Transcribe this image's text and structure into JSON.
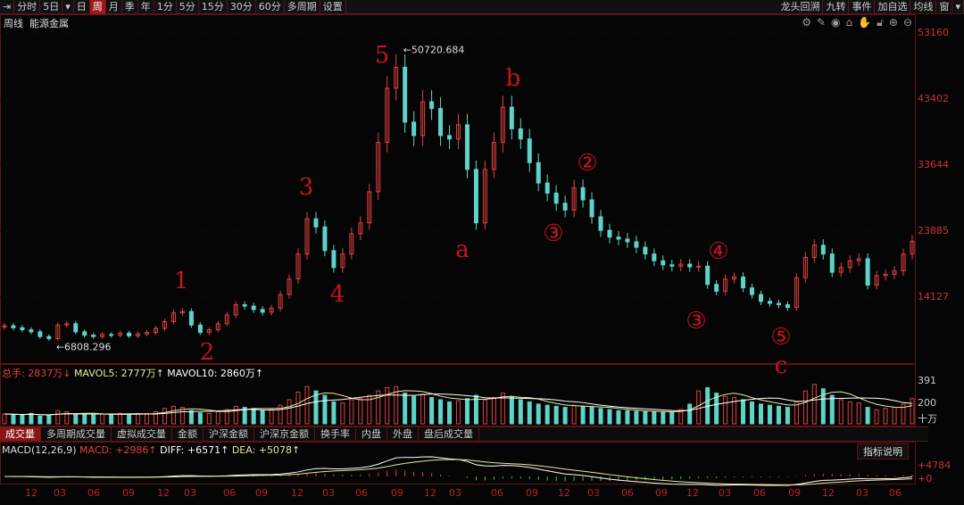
{
  "toolbar": {
    "items": [
      "分时",
      "5日",
      "▾",
      "日",
      "周",
      "月",
      "季",
      "年",
      "1分",
      "5分",
      "15分",
      "30分",
      "60分",
      "多周期",
      "设置"
    ],
    "active": "周",
    "right_items": [
      "龙头回溯",
      "九转",
      "事件",
      "加自选",
      "均线",
      "窗",
      "▾"
    ]
  },
  "title": {
    "period": "周线",
    "name": "能源金属"
  },
  "icons": [
    "gear-icon",
    "pen-icon",
    "eye-icon",
    "basket-icon",
    "hand-icon",
    "lock-icon",
    "zoom-in-icon",
    "zoom-out-icon"
  ],
  "colors": {
    "up": "#e0413f",
    "down": "#5fd3c8",
    "accent": "#a01818",
    "mavol5": "#e8e8a0",
    "mavol10": "#ffffff"
  },
  "volume_header": {
    "total_label": "总手:",
    "total": "2837万↓",
    "mavol5": "MAVOL5: 2777万↑",
    "mavol10": "MAVOL10: 2860万↑"
  },
  "volume_axis": [
    "391",
    "200",
    "十万"
  ],
  "tabs": [
    "成交量",
    "多周期成交量",
    "虚拟成交量",
    "金额",
    "沪深金额",
    "沪深京金额",
    "换手率",
    "内盘",
    "外盘",
    "盘后成交量"
  ],
  "macd_header": {
    "name": "MACD(12,26,9)",
    "macd": "MACD: +2986↑",
    "diff": "DIFF: +6571↑",
    "dea": "DEA: +5078↑"
  },
  "help_button": "指标说明",
  "macd_axis": [
    "+4784",
    "+0"
  ],
  "annotations": [
    "1",
    "2",
    "3",
    "4",
    "5",
    "a",
    "b",
    "②",
    "③",
    "④",
    "③",
    "⑤",
    "c"
  ],
  "chart_data": {
    "type": "candlestick",
    "price_axis_ticks": [
      53160,
      43402,
      33644,
      23885,
      14127
    ],
    "ylim": [
      6000,
      55000
    ],
    "high_label": "50720.684",
    "low_label": "6808.296",
    "time_ticks": [
      "12",
      "03",
      "06",
      "09",
      "12",
      "03",
      "06",
      "09",
      "12",
      "03",
      "06",
      "09",
      "12",
      "03",
      "06",
      "09",
      "12",
      "03",
      "06",
      "09",
      "12",
      "03",
      "06",
      "09",
      "12",
      "03",
      "06"
    ],
    "closes": [
      9900,
      9600,
      9300,
      9000,
      8300,
      8000,
      10000,
      10200,
      9000,
      8500,
      8300,
      8600,
      8500,
      8800,
      8400,
      8700,
      8900,
      9500,
      10500,
      11800,
      12000,
      10000,
      8900,
      9300,
      10200,
      11500,
      13000,
      12800,
      12300,
      11900,
      12500,
      14500,
      16800,
      20500,
      25700,
      24500,
      21000,
      18500,
      20500,
      23500,
      25100,
      29700,
      37000,
      45000,
      48100,
      40000,
      38000,
      43000,
      42000,
      38000,
      37500,
      39600,
      33000,
      25100,
      33000,
      37000,
      42200,
      39000,
      37500,
      34000,
      31000,
      29500,
      28000,
      27000,
      30300,
      28500,
      26000,
      24000,
      23000,
      22700,
      22300,
      21500,
      20500,
      19500,
      18900,
      18700,
      19000,
      18600,
      18700,
      16000,
      15000,
      16800,
      17100,
      15500,
      14500,
      13500,
      13200,
      13000,
      12600,
      17000,
      20000,
      21800,
      20500,
      17800,
      18500,
      19500,
      19800,
      15900,
      17300,
      17500,
      18000,
      20500,
      22400
    ],
    "volume_unit": "十万",
    "volume_ylim": [
      0,
      391
    ],
    "volumes": [
      90,
      85,
      80,
      95,
      70,
      75,
      120,
      110,
      90,
      85,
      80,
      90,
      85,
      95,
      80,
      90,
      95,
      110,
      140,
      160,
      150,
      120,
      100,
      95,
      110,
      130,
      160,
      150,
      140,
      120,
      130,
      170,
      220,
      290,
      340,
      300,
      260,
      200,
      190,
      220,
      230,
      260,
      300,
      330,
      340,
      280,
      250,
      270,
      240,
      220,
      200,
      210,
      230,
      260,
      220,
      240,
      280,
      250,
      220,
      200,
      180,
      170,
      160,
      150,
      170,
      160,
      150,
      140,
      130,
      120,
      120,
      115,
      110,
      110,
      105,
      110,
      130,
      180,
      300,
      330,
      280,
      250,
      240,
      220,
      200,
      180,
      170,
      160,
      150,
      200,
      300,
      360,
      320,
      260,
      220,
      200,
      190,
      150,
      130,
      140,
      150,
      180,
      230
    ]
  }
}
